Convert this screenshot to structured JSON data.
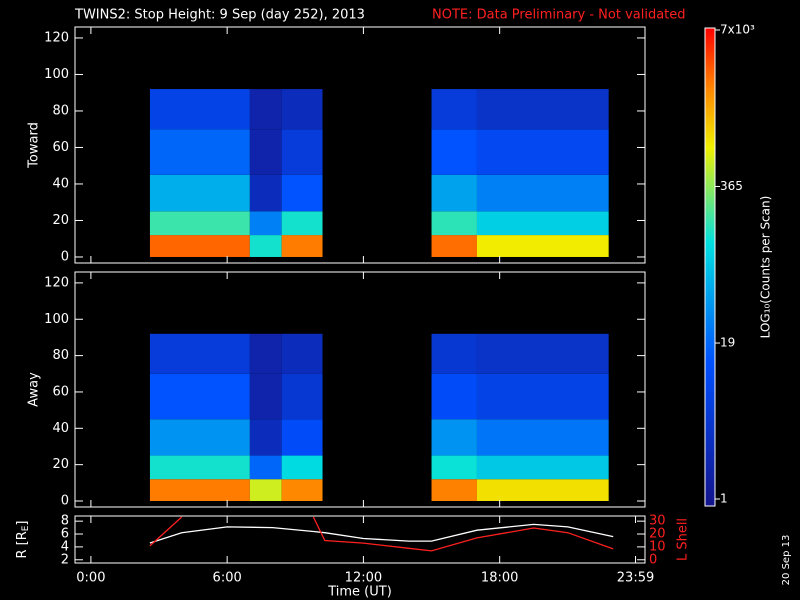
{
  "header": {
    "title": "TWINS2: Stop Height:  9 Sep (day 252), 2013",
    "note": "NOTE: Data Preliminary - Not validated",
    "x_label": "Time (UT)",
    "date_stamp": "20 Sep 13"
  },
  "chart_data": [
    {
      "type": "heatmap",
      "y_label": "Toward",
      "x_bins": [
        2.6,
        7.0,
        8.4,
        10.2,
        15.0,
        17.0,
        22.8
      ],
      "y_bins": [
        0,
        12,
        25,
        45,
        70,
        92
      ],
      "values": [
        [
          3000,
          200,
          60,
          20,
          8
        ],
        [
          150,
          30,
          3,
          2,
          2
        ],
        [
          2500,
          150,
          15,
          6,
          3
        ],
        [
          null,
          null,
          null,
          null,
          null
        ],
        [
          2800,
          180,
          50,
          15,
          6
        ],
        [
          800,
          100,
          30,
          10,
          4
        ]
      ],
      "xlim": [
        -0.7,
        24.4
      ],
      "xticks": [
        0,
        6,
        12,
        18
      ],
      "ylim": [
        -3.3,
        126
      ],
      "yticks": [
        0,
        20,
        40,
        60,
        80,
        100,
        120
      ]
    },
    {
      "type": "heatmap",
      "y_label": "Away",
      "x_bins": [
        2.6,
        7.0,
        8.4,
        10.2,
        15.0,
        17.0,
        22.8
      ],
      "y_bins": [
        0,
        12,
        25,
        45,
        70,
        92
      ],
      "values": [
        [
          2500,
          150,
          40,
          15,
          6
        ],
        [
          600,
          20,
          3,
          2,
          2
        ],
        [
          2200,
          120,
          12,
          5,
          3
        ],
        [
          null,
          null,
          null,
          null,
          null
        ],
        [
          2400,
          140,
          40,
          12,
          5
        ],
        [
          900,
          90,
          25,
          8,
          4
        ]
      ],
      "xlim": [
        -0.7,
        24.4
      ],
      "xticks": [
        0,
        6,
        12,
        18
      ],
      "ylim": [
        -3.3,
        126
      ],
      "yticks": [
        0,
        20,
        40,
        60,
        80,
        100,
        120
      ]
    },
    {
      "type": "line",
      "y_label_parts": [
        "R [R",
        "E",
        "]"
      ],
      "y2_label": "L Shell",
      "x": [
        2.6,
        4.0,
        6.0,
        8.0,
        9.8,
        10.3,
        12.0,
        14.0,
        15.0,
        17.0,
        19.5,
        21.0,
        23.0
      ],
      "series": [
        {
          "name": "R",
          "color": "#ffffff",
          "values": [
            4.6,
            6.2,
            7.1,
            7.0,
            6.4,
            6.2,
            5.3,
            4.9,
            4.9,
            6.6,
            7.5,
            7.1,
            5.6
          ]
        },
        {
          "name": "L Shell",
          "color": "#ff2020",
          "axis": "y2",
          "values": [
            10.8,
            33,
            null,
            null,
            33,
            15,
            13,
            9,
            7,
            17,
            24.6,
            21,
            8.5
          ]
        }
      ],
      "xlim": [
        -0.7,
        24.4
      ],
      "xticks": [
        {
          "value": 0,
          "label": "0:00"
        },
        {
          "value": 6,
          "label": "6:00"
        },
        {
          "value": 12,
          "label": "12:00"
        },
        {
          "value": 18,
          "label": "18:00"
        },
        {
          "value": 23.983,
          "label": "23:59"
        }
      ],
      "ylim": [
        1.5,
        8.8
      ],
      "yticks": [
        2,
        4,
        6,
        8
      ],
      "y2lim": [
        -2.3,
        33.8
      ],
      "y2ticks": [
        0,
        10,
        20,
        30
      ]
    },
    {
      "type": "colorbar",
      "label": "LOG₁₀(Counts per Scan)",
      "log": true,
      "lim": [
        1,
        7000
      ],
      "ticks": [
        1,
        19,
        365,
        {
          "value": 7000,
          "label": "7x10³"
        }
      ]
    }
  ]
}
